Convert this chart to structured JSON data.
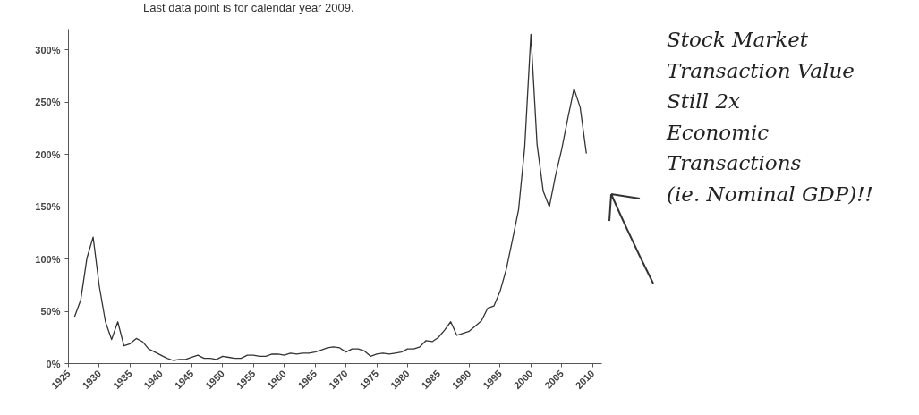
{
  "chart_data": {
    "type": "line",
    "x": [
      1926,
      1927,
      1928,
      1929,
      1930,
      1931,
      1932,
      1933,
      1934,
      1935,
      1936,
      1937,
      1938,
      1939,
      1940,
      1941,
      1942,
      1943,
      1944,
      1945,
      1946,
      1947,
      1948,
      1949,
      1950,
      1951,
      1952,
      1953,
      1954,
      1955,
      1956,
      1957,
      1958,
      1959,
      1960,
      1961,
      1962,
      1963,
      1964,
      1965,
      1966,
      1967,
      1968,
      1969,
      1970,
      1971,
      1972,
      1973,
      1974,
      1975,
      1976,
      1977,
      1978,
      1979,
      1980,
      1981,
      1982,
      1983,
      1984,
      1985,
      1986,
      1987,
      1988,
      1989,
      1990,
      1991,
      1992,
      1993,
      1994,
      1995,
      1996,
      1997,
      1998,
      1999,
      2000,
      2001,
      2002,
      2003,
      2004,
      2005,
      2006,
      2007,
      2008,
      2009
    ],
    "series": [
      {
        "color": "#333333",
        "values": [
          45,
          61,
          101,
          121,
          74,
          40,
          23,
          40,
          17,
          19,
          24,
          21,
          14,
          11,
          8,
          5,
          3,
          4,
          4,
          6,
          8,
          5,
          5,
          4,
          7,
          6,
          5,
          5,
          8,
          8,
          7,
          7,
          9,
          9,
          8,
          10,
          9,
          10,
          10,
          11,
          13,
          15,
          16,
          15,
          11,
          14,
          14,
          12,
          7,
          9,
          10,
          9,
          10,
          11,
          14,
          14,
          16,
          22,
          21,
          25,
          32,
          40,
          27,
          29,
          31,
          36,
          41,
          53,
          55,
          69,
          90,
          118,
          147,
          207,
          315,
          210,
          165,
          150,
          180,
          205,
          235,
          263,
          245,
          201
        ]
      }
    ],
    "xlim": [
      1925,
      2011.5
    ],
    "ylim": [
      0,
      320
    ],
    "xticks": [
      1925,
      1930,
      1935,
      1940,
      1945,
      1950,
      1955,
      1960,
      1965,
      1970,
      1975,
      1980,
      1985,
      1990,
      1995,
      2000,
      2005,
      2010
    ],
    "yticks": [
      {
        "value": 0,
        "label": "0%"
      },
      {
        "value": 50,
        "label": "50%"
      },
      {
        "value": 100,
        "label": "100%"
      },
      {
        "value": 150,
        "label": "150%"
      },
      {
        "value": 200,
        "label": "200%"
      },
      {
        "value": 250,
        "label": "250%"
      },
      {
        "value": 300,
        "label": "300%"
      }
    ],
    "grid": false,
    "marker": "none",
    "line_style": "solid",
    "annotations": [
      "Last data point is for calendar year 2009.",
      "Stock Market\nTransaction Value\nStill 2x\nEconomic\nTransactions\n(ie. Nominal GDP)!!"
    ]
  }
}
